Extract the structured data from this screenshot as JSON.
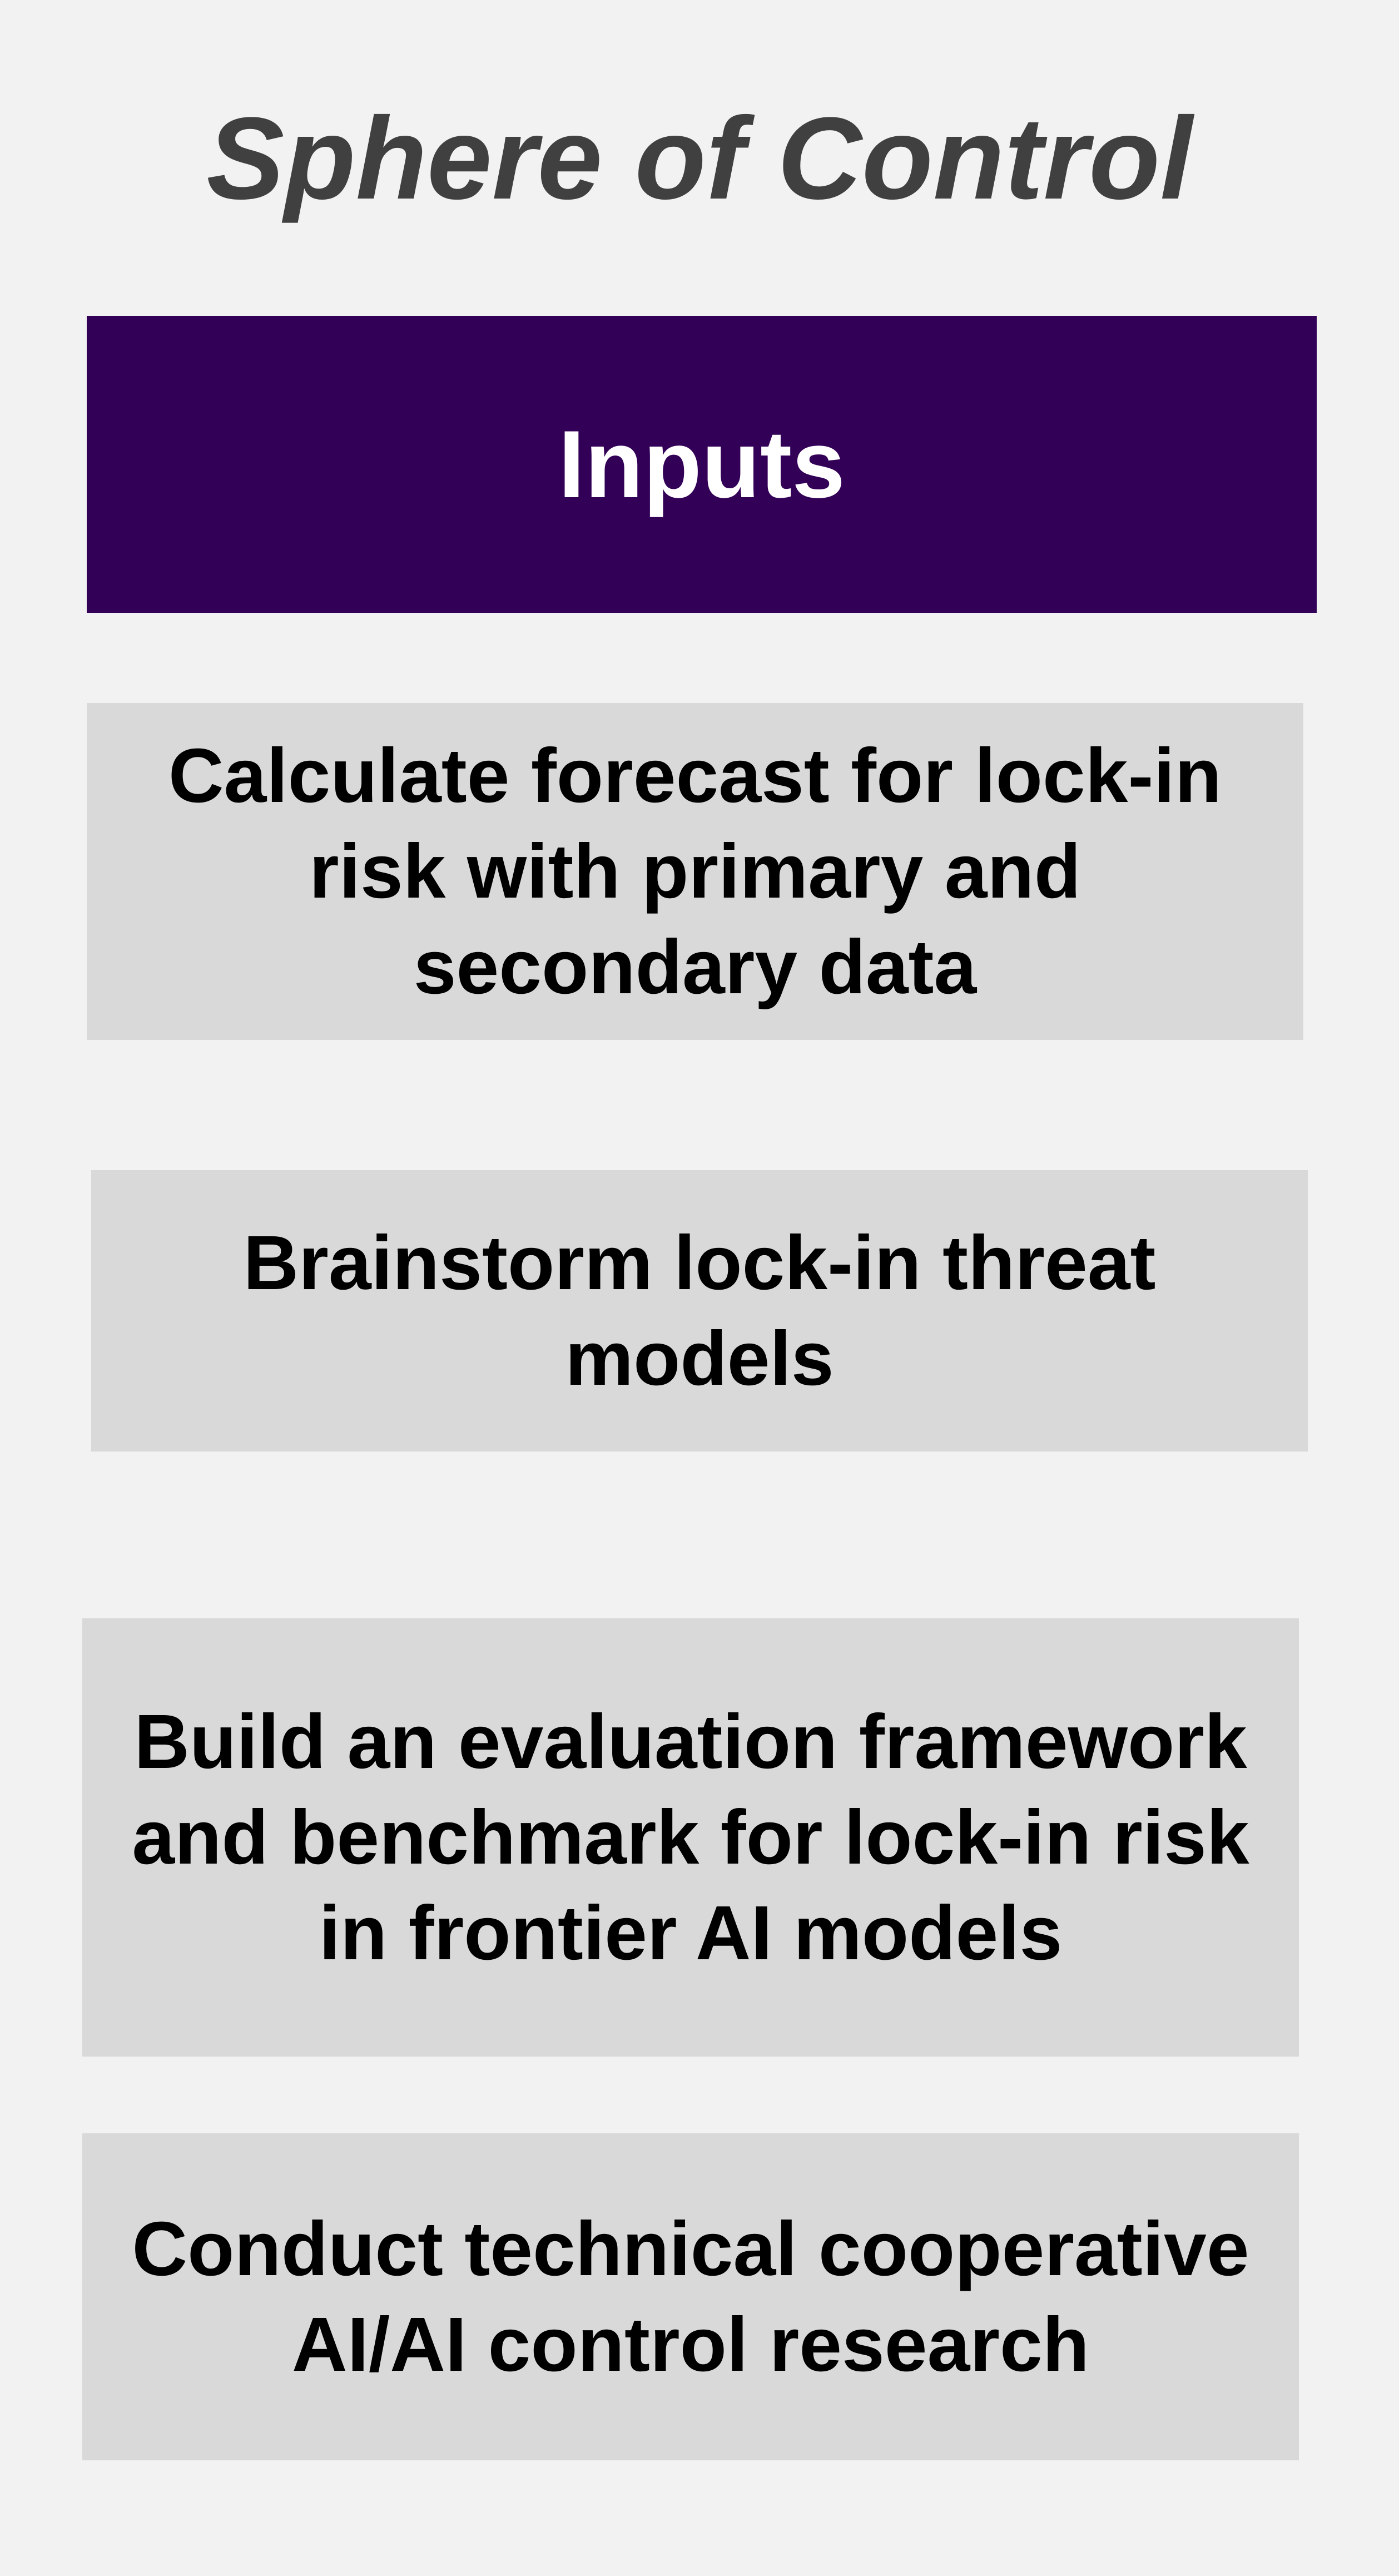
{
  "title": "Sphere of Control",
  "header": {
    "label": "Inputs",
    "color": "#330057"
  },
  "boxes": [
    {
      "text": "Calculate forecast for lock-in risk with primary and secondary data"
    },
    {
      "text": "Brainstorm lock-in threat models"
    },
    {
      "text": "Build an evaluation framework and benchmark for lock-in risk in frontier AI models"
    },
    {
      "text": "Conduct technical cooperative AI/AI control research"
    }
  ]
}
